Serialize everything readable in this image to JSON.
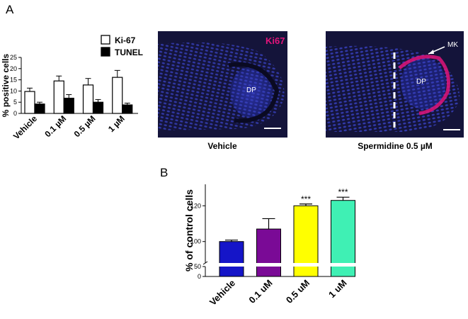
{
  "panel_labels": [
    "A",
    "B"
  ],
  "micrographs": [
    {
      "caption": "Vehicle",
      "stain_label": "Ki67",
      "region_label": "DP",
      "colors": {
        "background": "#14143a",
        "nuclei": "#3a44c8",
        "stain": "#e0147a"
      }
    },
    {
      "caption": "Spermidine 0.5 µM",
      "region_label": "DP",
      "marker_label": "MK",
      "colors": {
        "background": "#14143a",
        "nuclei": "#3a44c8",
        "stain": "#e0147a"
      }
    }
  ],
  "chart_data": [
    {
      "type": "bar",
      "title": "",
      "ylabel": "% positive cells",
      "xlabel": "",
      "categories": [
        "Vehicle",
        "0.1 µM",
        "0.5 µM",
        "1 µM"
      ],
      "yticks": [
        0,
        5,
        10,
        15,
        20,
        25
      ],
      "ylim": [
        0,
        25
      ],
      "legend_position": "top-right",
      "series": [
        {
          "name": "Ki-67",
          "values": [
            9.8,
            14.5,
            12.7,
            16.1
          ],
          "errors": [
            1.5,
            2.2,
            2.9,
            3.1
          ],
          "color": "#ffffff"
        },
        {
          "name": "TUNEL",
          "values": [
            4.2,
            6.8,
            5.0,
            3.8
          ],
          "errors": [
            0.8,
            1.6,
            1.2,
            0.8
          ],
          "color": "#000000"
        }
      ]
    },
    {
      "type": "bar",
      "title": "",
      "ylabel": "% of control cells",
      "xlabel": "",
      "categories": [
        "Vehicle",
        "0.1 uM",
        "0.5 uM",
        "1 uM"
      ],
      "values": [
        100,
        107,
        120,
        123
      ],
      "errors": [
        0.8,
        5.8,
        1.0,
        1.8
      ],
      "colors": [
        "#1515c8",
        "#7a0a96",
        "#ffff00",
        "#3ff0b4"
      ],
      "significance": [
        "",
        "",
        "***",
        "***"
      ],
      "yticks": [
        0,
        50,
        100,
        120
      ],
      "axis_break": true,
      "ylim": [
        0,
        130
      ]
    }
  ]
}
